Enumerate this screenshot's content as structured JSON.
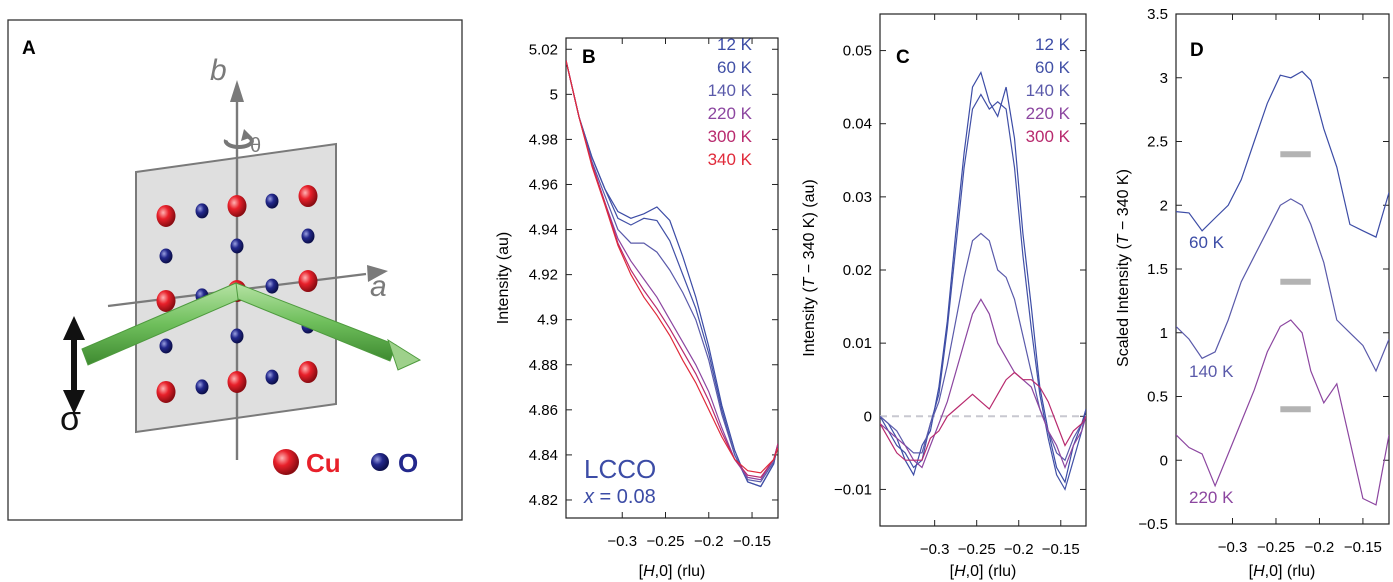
{
  "panels": {
    "A": {
      "letter": "A",
      "axis_b": "b",
      "axis_a": "a",
      "theta": "θ",
      "sigma": "σ",
      "legend_cu": "Cu",
      "legend_o": "O",
      "colors": {
        "cu": "#e8202a",
        "o": "#23288c",
        "beam": "#7cc56a",
        "plane": "#d9d9d9"
      }
    },
    "B": {
      "letter": "B",
      "sample": "LCCO",
      "doping_var": "x",
      "doping_rest": " = 0.08",
      "ylabel": "Intensity (au)",
      "xlabel_pre": "[",
      "xlabel_var": "H",
      "xlabel_post": ",0] (rlu)"
    },
    "C": {
      "letter": "C",
      "ylabel_pre": "Intensity (",
      "ylabel_var": "T",
      "ylabel_post": " − 340 K) (au)",
      "xlabel_pre": "[",
      "xlabel_var": "H",
      "xlabel_post": ",0] (rlu)"
    },
    "D": {
      "letter": "D",
      "ylabel_pre": "Scaled Intensity (",
      "ylabel_var": "T",
      "ylabel_post": " − 340 K)",
      "xlabel_pre": "[",
      "xlabel_var": "H",
      "xlabel_post": ",0] (rlu)"
    }
  },
  "chart_data": [
    {
      "panel": "B",
      "type": "line",
      "xlim": [
        -0.365,
        -0.12
      ],
      "ylim": [
        4.812,
        5.025
      ],
      "xticks": [
        -0.3,
        -0.25,
        -0.2,
        -0.15
      ],
      "xtick_labels": [
        "−0.3",
        "−0.25",
        "−0.2",
        "−0.15"
      ],
      "yticks": [
        4.82,
        4.84,
        4.86,
        4.88,
        4.9,
        4.92,
        4.94,
        4.96,
        4.98,
        5,
        5.02
      ],
      "ytick_labels": [
        "4.82",
        "4.84",
        "4.86",
        "4.88",
        "4.9",
        "4.92",
        "4.94",
        "4.96",
        "4.98",
        "5",
        "5.02"
      ],
      "x": [
        -0.365,
        -0.35,
        -0.335,
        -0.32,
        -0.305,
        -0.29,
        -0.275,
        -0.26,
        -0.245,
        -0.23,
        -0.215,
        -0.2,
        -0.185,
        -0.17,
        -0.155,
        -0.14,
        -0.125,
        -0.12
      ],
      "series": [
        {
          "name": "12 K",
          "color": "#3c4ca6",
          "values": [
            5.015,
            4.99,
            4.972,
            4.958,
            4.948,
            4.945,
            4.947,
            4.95,
            4.944,
            4.928,
            4.91,
            4.888,
            4.862,
            4.842,
            4.828,
            4.826,
            4.836,
            4.845
          ]
        },
        {
          "name": "60 K",
          "color": "#4150a6",
          "values": [
            5.015,
            4.99,
            4.972,
            4.958,
            4.945,
            4.942,
            4.945,
            4.944,
            4.935,
            4.92,
            4.905,
            4.885,
            4.86,
            4.84,
            4.828,
            4.826,
            4.836,
            4.845
          ]
        },
        {
          "name": "140 K",
          "color": "#5a5aaa",
          "values": [
            5.015,
            4.99,
            4.97,
            4.955,
            4.94,
            4.934,
            4.934,
            4.93,
            4.922,
            4.912,
            4.9,
            4.882,
            4.858,
            4.84,
            4.829,
            4.828,
            4.837,
            4.845
          ]
        },
        {
          "name": "220 K",
          "color": "#8c46a0",
          "values": [
            5.015,
            4.99,
            4.969,
            4.952,
            4.936,
            4.926,
            4.918,
            4.91,
            4.9,
            4.89,
            4.88,
            4.868,
            4.852,
            4.838,
            4.83,
            4.829,
            4.838,
            4.845
          ]
        },
        {
          "name": "300 K",
          "color": "#b82a6e",
          "values": [
            5.015,
            4.99,
            4.969,
            4.952,
            4.934,
            4.922,
            4.913,
            4.905,
            4.896,
            4.886,
            4.876,
            4.864,
            4.85,
            4.838,
            4.831,
            4.83,
            4.838,
            4.845
          ]
        },
        {
          "name": "340 K",
          "color": "#e02a3a",
          "values": [
            5.015,
            4.99,
            4.968,
            4.951,
            4.933,
            4.92,
            4.91,
            4.902,
            4.893,
            4.882,
            4.872,
            4.86,
            4.848,
            4.838,
            4.833,
            4.832,
            4.838,
            4.843
          ]
        }
      ]
    },
    {
      "panel": "C",
      "type": "line",
      "xlim": [
        -0.365,
        -0.12
      ],
      "ylim": [
        -0.015,
        0.055
      ],
      "xticks": [
        -0.3,
        -0.25,
        -0.2,
        -0.15
      ],
      "xtick_labels": [
        "−0.3",
        "−0.25",
        "−0.2",
        "−0.15"
      ],
      "yticks": [
        -0.01,
        0,
        0.01,
        0.02,
        0.03,
        0.04,
        0.05
      ],
      "ytick_labels": [
        "−0.01",
        "0",
        "0.01",
        "0.02",
        "0.03",
        "0.04",
        "0.05"
      ],
      "zero_line": true,
      "x": [
        -0.365,
        -0.355,
        -0.345,
        -0.335,
        -0.325,
        -0.315,
        -0.305,
        -0.295,
        -0.285,
        -0.275,
        -0.265,
        -0.255,
        -0.245,
        -0.235,
        -0.225,
        -0.215,
        -0.205,
        -0.195,
        -0.185,
        -0.175,
        -0.165,
        -0.155,
        -0.145,
        -0.135,
        -0.125,
        -0.12
      ],
      "series": [
        {
          "name": "12 K",
          "color": "#3c4ca6",
          "values": [
            0.0,
            -0.001,
            -0.003,
            -0.006,
            -0.008,
            -0.004,
            -0.002,
            0.004,
            0.013,
            0.025,
            0.036,
            0.045,
            0.047,
            0.043,
            0.041,
            0.045,
            0.038,
            0.025,
            0.015,
            0.004,
            -0.002,
            -0.007,
            -0.009,
            -0.004,
            -0.001,
            0.001
          ]
        },
        {
          "name": "60 K",
          "color": "#4150a6",
          "values": [
            0.0,
            -0.002,
            -0.004,
            -0.005,
            -0.007,
            -0.006,
            -0.001,
            0.003,
            0.012,
            0.023,
            0.034,
            0.042,
            0.044,
            0.042,
            0.043,
            0.042,
            0.034,
            0.022,
            0.012,
            0.003,
            -0.003,
            -0.008,
            -0.01,
            -0.006,
            -0.002,
            0.001
          ]
        },
        {
          "name": "140 K",
          "color": "#5a5aaa",
          "values": [
            0.0,
            -0.001,
            -0.002,
            -0.004,
            -0.005,
            -0.005,
            -0.001,
            0.002,
            0.007,
            0.013,
            0.019,
            0.024,
            0.025,
            0.024,
            0.02,
            0.019,
            0.016,
            0.011,
            0.006,
            0.001,
            -0.002,
            -0.005,
            -0.006,
            -0.003,
            -0.001,
            0.0
          ]
        },
        {
          "name": "220 K",
          "color": "#8c46a0",
          "values": [
            -0.001,
            -0.002,
            -0.003,
            -0.004,
            -0.006,
            -0.007,
            -0.004,
            -0.001,
            0.002,
            0.006,
            0.01,
            0.014,
            0.016,
            0.014,
            0.01,
            0.008,
            0.006,
            0.005,
            0.004,
            0.001,
            -0.002,
            -0.004,
            -0.007,
            -0.004,
            -0.002,
            0.0
          ]
        },
        {
          "name": "300 K",
          "color": "#b82a6e",
          "values": [
            -0.001,
            -0.003,
            -0.005,
            -0.006,
            -0.006,
            -0.006,
            -0.003,
            -0.002,
            0.0,
            0.001,
            0.002,
            0.003,
            0.002,
            0.001,
            0.003,
            0.005,
            0.006,
            0.005,
            0.005,
            0.004,
            0.002,
            -0.001,
            -0.004,
            -0.002,
            -0.001,
            0.0
          ]
        }
      ]
    },
    {
      "panel": "D",
      "type": "line",
      "xlim": [
        -0.365,
        -0.12
      ],
      "ylim": [
        -0.5,
        3.5
      ],
      "xticks": [
        -0.3,
        -0.25,
        -0.2,
        -0.15
      ],
      "xtick_labels": [
        "−0.3",
        "−0.25",
        "−0.2",
        "−0.15"
      ],
      "yticks": [
        -0.5,
        0,
        0.5,
        1,
        1.5,
        2,
        2.5,
        3,
        3.5
      ],
      "ytick_labels": [
        "−0.5",
        "0",
        "0.5",
        "1",
        "1.5",
        "2",
        "2.5",
        "3",
        "3.5"
      ],
      "x": [
        -0.365,
        -0.35,
        -0.335,
        -0.32,
        -0.305,
        -0.29,
        -0.275,
        -0.26,
        -0.245,
        -0.233,
        -0.22,
        -0.21,
        -0.195,
        -0.18,
        -0.165,
        -0.15,
        -0.135,
        -0.12
      ],
      "series": [
        {
          "name": "60 K",
          "color": "#3c4ca6",
          "values": [
            1.95,
            1.94,
            1.8,
            1.9,
            2.0,
            2.2,
            2.5,
            2.8,
            3.02,
            3.0,
            3.05,
            2.98,
            2.6,
            2.3,
            1.85,
            1.8,
            1.75,
            2.1
          ]
        },
        {
          "name": "140 K",
          "color": "#5a5aaa",
          "values": [
            1.05,
            0.95,
            0.8,
            0.85,
            1.1,
            1.4,
            1.6,
            1.8,
            2.0,
            2.05,
            2.0,
            1.85,
            1.55,
            1.1,
            1.0,
            0.9,
            0.7,
            0.95
          ]
        },
        {
          "name": "220 K",
          "color": "#8c46a0",
          "values": [
            0.2,
            0.1,
            0.05,
            -0.2,
            0.05,
            0.3,
            0.55,
            0.85,
            1.05,
            1.1,
            1.0,
            0.7,
            0.45,
            0.6,
            0.15,
            -0.3,
            -0.35,
            0.2
          ]
        }
      ],
      "markers": [
        {
          "y": 2.4,
          "x_from": -0.245,
          "x_to": -0.21,
          "color": "#b3b3b3"
        },
        {
          "y": 1.4,
          "x_from": -0.245,
          "x_to": -0.21,
          "color": "#b3b3b3"
        },
        {
          "y": 0.4,
          "x_from": -0.245,
          "x_to": -0.21,
          "color": "#b3b3b3"
        }
      ]
    }
  ]
}
